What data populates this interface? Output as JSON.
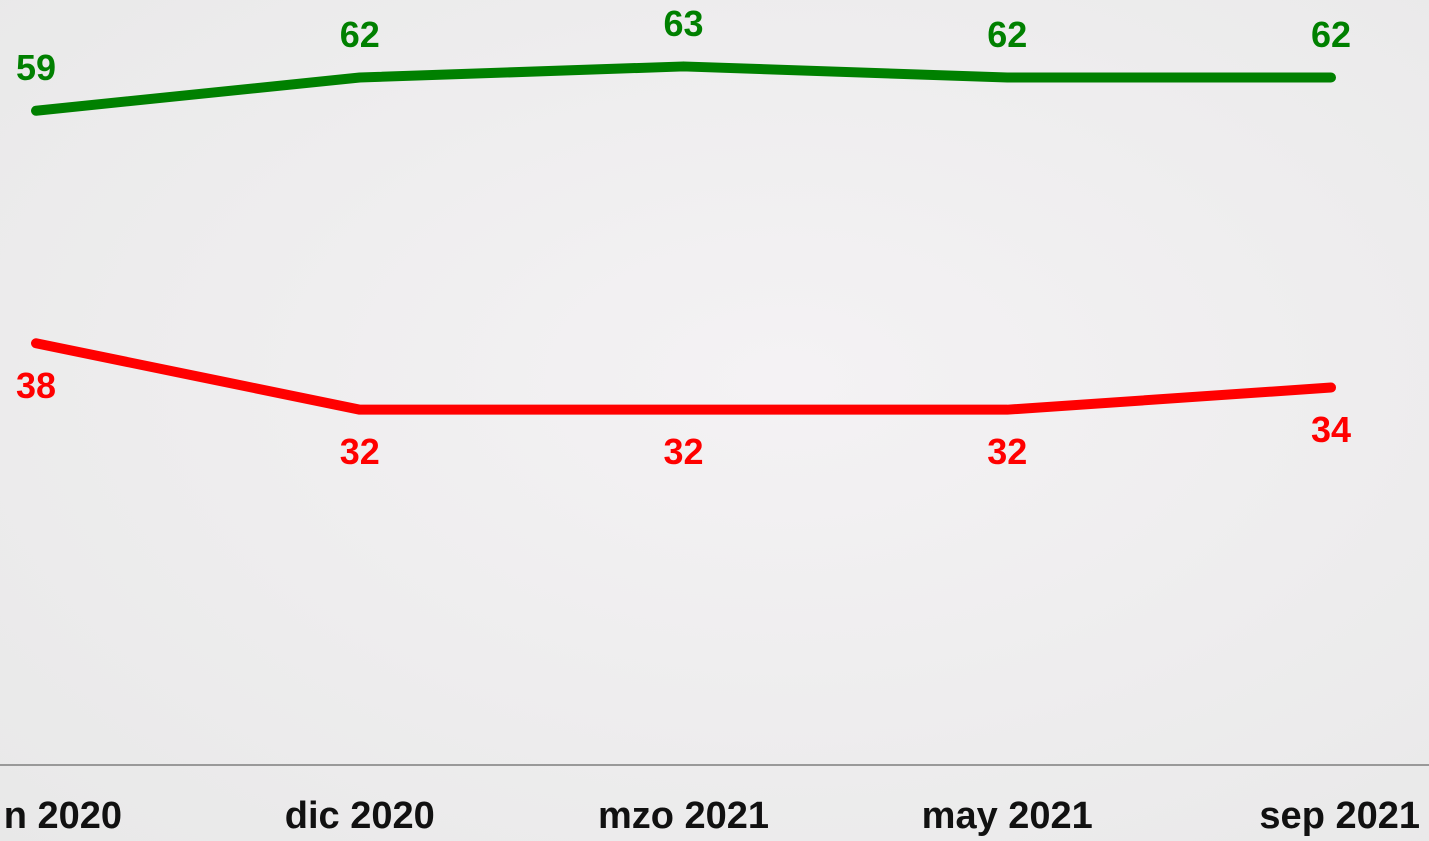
{
  "chart_data": {
    "type": "line",
    "categories": [
      "n 2020",
      "dic 2020",
      "mzo 2021",
      "may 2021",
      "sep 2021"
    ],
    "series": [
      {
        "color": "#008000",
        "values": [
          59,
          62,
          63,
          62,
          62
        ]
      },
      {
        "color": "#ff0000",
        "values": [
          38,
          32,
          32,
          32,
          34
        ]
      }
    ],
    "ylim": [
      0,
      69
    ]
  }
}
